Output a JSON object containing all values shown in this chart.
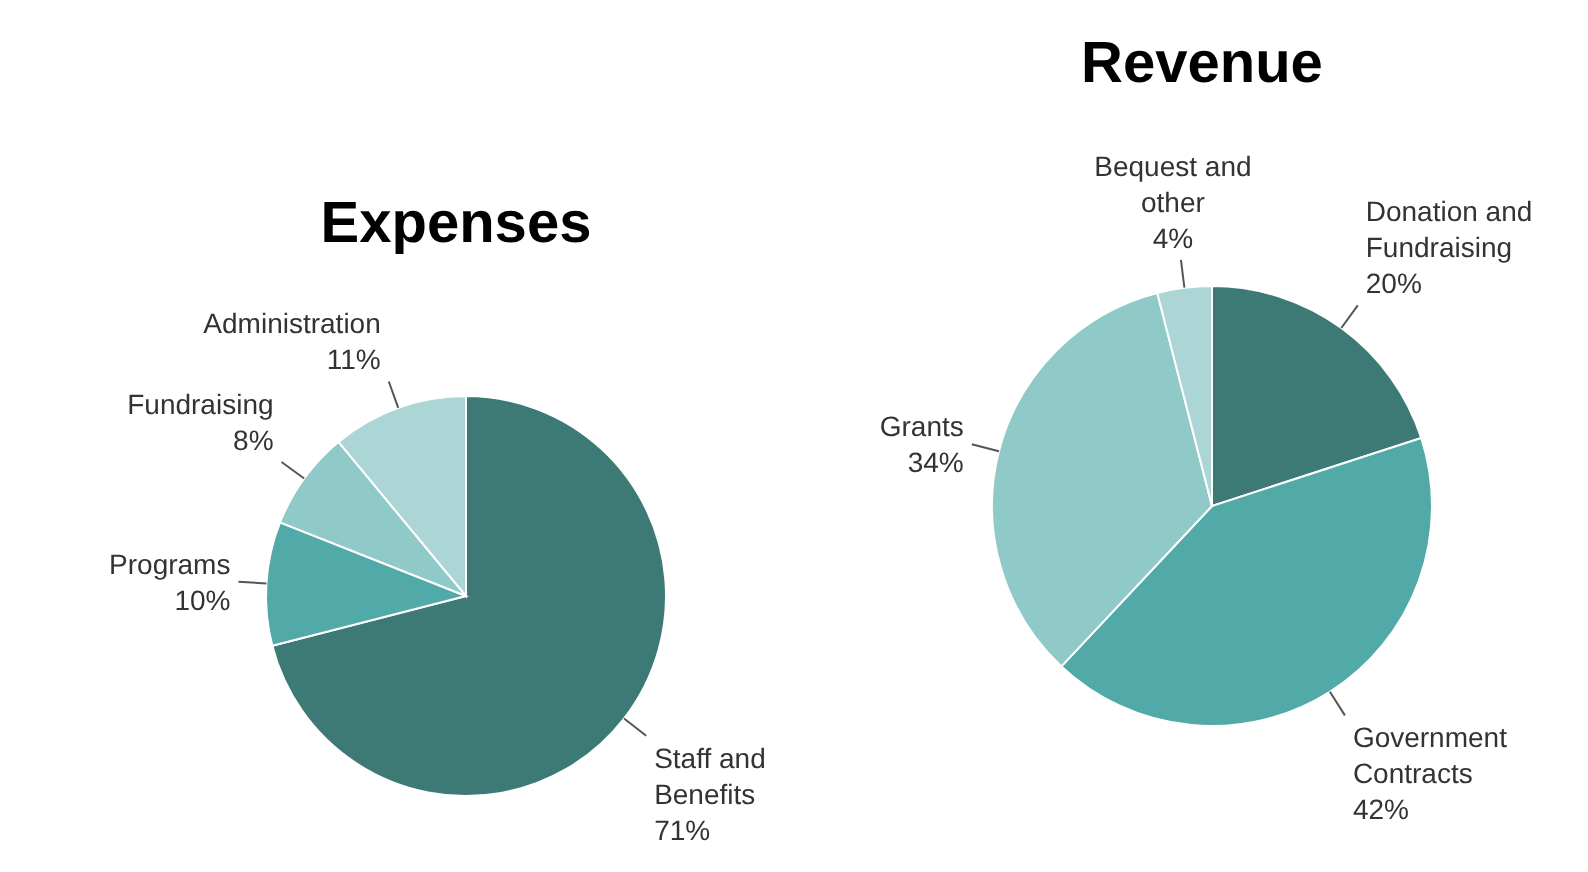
{
  "chart_data": [
    {
      "type": "pie",
      "title": "Expenses",
      "categories": [
        "Staff and Benefits",
        "Programs",
        "Fundraising",
        "Administration"
      ],
      "values": [
        71,
        10,
        8,
        11
      ],
      "value_labels": [
        "71%",
        "10%",
        "8%",
        "11%"
      ],
      "colors": [
        "#3d7a76",
        "#52aaa8",
        "#8fcac8",
        "#acd6d6"
      ],
      "data_labels": true,
      "legend": false
    },
    {
      "type": "pie",
      "title": "Revenue",
      "categories": [
        "Donation and Fundraising",
        "Government Contracts",
        "Grants",
        "Bequest and other"
      ],
      "values": [
        20,
        42,
        34,
        4
      ],
      "value_labels": [
        "20%",
        "42%",
        "34%",
        "4%"
      ],
      "colors": [
        "#3d7a76",
        "#52aaa8",
        "#8fcac8",
        "#acd6d6"
      ],
      "data_labels": true,
      "legend": false
    }
  ]
}
